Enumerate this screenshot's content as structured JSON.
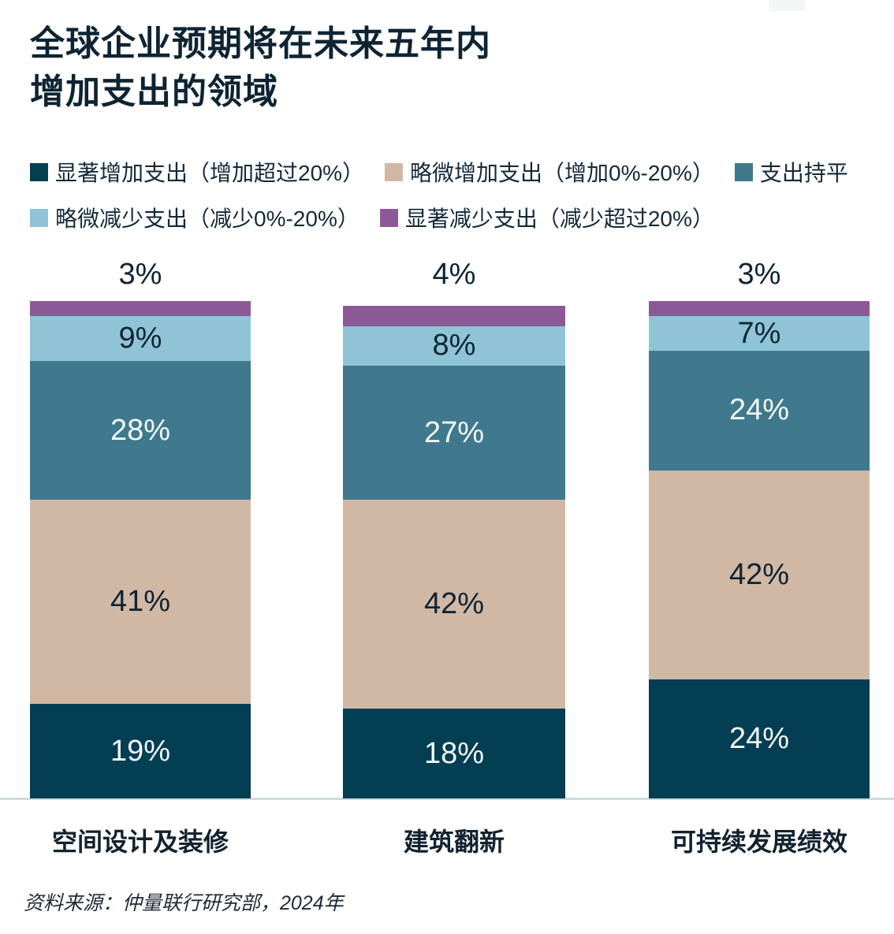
{
  "title": {
    "line1": "全球企业预期将在未来五年内",
    "line2": "增加支出的领域"
  },
  "source": "资料来源：仲量联行研究部，2024年",
  "colors": {
    "significant_increase": "#043e52",
    "slight_increase": "#d1b8a5",
    "flat": "#40798d",
    "slight_decrease": "#8fc4d6",
    "significant_decrease": "#8c5997",
    "dark_text": "#0e2433",
    "light_text": "#f2f8fa",
    "baseline": "#ccdbe1"
  },
  "chart_data": {
    "type": "bar",
    "stacked": true,
    "orientation": "vertical",
    "grid": false,
    "legend_position": "top",
    "value_unit": "%",
    "ylim": [
      0,
      100
    ],
    "categories": [
      "空间设计及装修",
      "建筑翻新",
      "可持续发展绩效"
    ],
    "series": [
      {
        "name": "显著增加支出（增加超过20%）",
        "color": "#043e52",
        "label_color": "#f2f8fa",
        "label_position": "inside",
        "values": [
          19,
          18,
          24
        ]
      },
      {
        "name": "略微增加支出（增加0%-20%）",
        "color": "#d1b8a5",
        "label_color": "#0e2433",
        "label_position": "inside",
        "values": [
          41,
          42,
          42
        ]
      },
      {
        "name": "支出持平",
        "color": "#40798d",
        "label_color": "#f2f8fa",
        "label_position": "inside",
        "values": [
          28,
          27,
          24
        ]
      },
      {
        "name": "略微减少支出（减少0%-20%）",
        "color": "#8fc4d6",
        "label_color": "#0e2433",
        "label_position": "inside",
        "values": [
          9,
          8,
          7
        ]
      },
      {
        "name": "显著减少支出（减少超过20%）",
        "color": "#8c5997",
        "label_color": "#0e2433",
        "label_position": "above",
        "values": [
          3,
          4,
          3
        ]
      }
    ]
  }
}
